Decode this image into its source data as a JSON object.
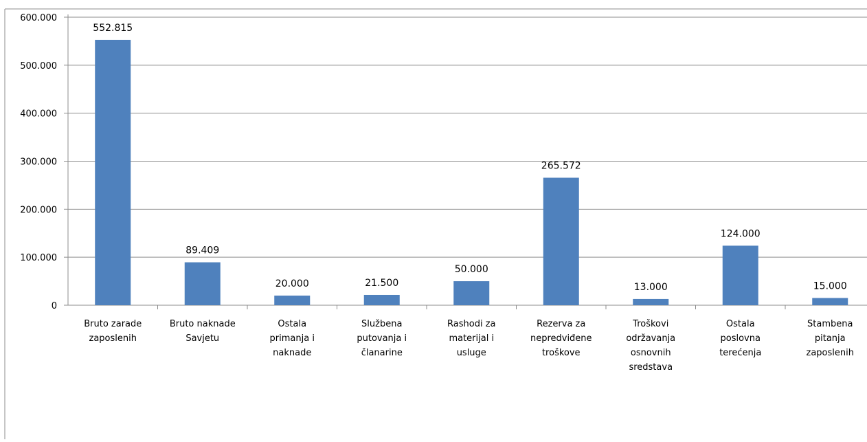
{
  "chart_data": {
    "type": "bar",
    "categories": [
      [
        "Bruto zarade",
        "zaposlenih"
      ],
      [
        "Bruto naknade",
        "Savjetu"
      ],
      [
        "Ostala",
        "primanja i",
        "naknade"
      ],
      [
        "Službena",
        "putovanja i",
        "članarine"
      ],
      [
        "Rashodi za",
        "materijal i",
        "usluge"
      ],
      [
        "Rezerva za",
        "nepredviđene",
        "troškove"
      ],
      [
        "Troškovi",
        "održavanja",
        "osnovnih",
        "sredstava"
      ],
      [
        "Ostala",
        "poslovna",
        "terećenja"
      ],
      [
        "Stambena",
        "pitanja",
        "zaposlenih"
      ]
    ],
    "values": [
      552815,
      89409,
      20000,
      21500,
      50000,
      265572,
      13000,
      124000,
      15000
    ],
    "data_labels": [
      "552.815",
      "89.409",
      "20.000",
      "21.500",
      "50.000",
      "265.572",
      "13.000",
      "124.000",
      "15.000"
    ],
    "ylim": [
      0,
      600000
    ],
    "yticks": [
      0,
      100000,
      200000,
      300000,
      400000,
      500000,
      600000
    ],
    "ytick_labels": [
      "0",
      "100.000",
      "200.000",
      "300.000",
      "400.000",
      "500.000",
      "600.000"
    ],
    "grid": true,
    "colors": {
      "bar": "#4f81bd",
      "grid": "#8c8c8c",
      "axis": "#8c8c8c",
      "border": "#8c8c8c"
    }
  }
}
